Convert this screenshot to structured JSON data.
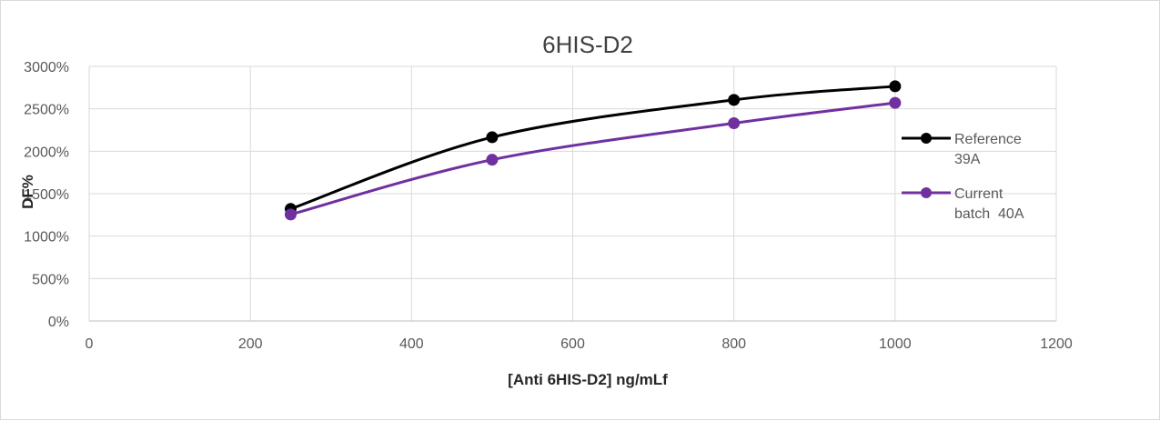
{
  "chart_data": {
    "type": "line",
    "title": "6HIS-D2",
    "xlabel": "[Anti 6HIS-D2] ng/mLf",
    "ylabel": "DF%",
    "xlim": [
      0,
      1200
    ],
    "ylim": [
      0,
      3000
    ],
    "x_ticks": [
      "0",
      "200",
      "400",
      "600",
      "800",
      "1000",
      "1200"
    ],
    "y_ticks": [
      "0%",
      "500%",
      "1000%",
      "1500%",
      "2000%",
      "2500%",
      "3000%"
    ],
    "grid": true,
    "legend_position": "right",
    "series": [
      {
        "name_lines": [
          "Reference",
          "39A"
        ],
        "color": "#000000",
        "x": [
          250,
          500,
          800,
          1000
        ],
        "y": [
          1320,
          2165,
          2605,
          2765
        ]
      },
      {
        "name_lines": [
          "Current",
          "batch  40A"
        ],
        "color": "#7030a0",
        "x": [
          250,
          500,
          800,
          1000
        ],
        "y": [
          1255,
          1900,
          2330,
          2570
        ]
      }
    ]
  }
}
